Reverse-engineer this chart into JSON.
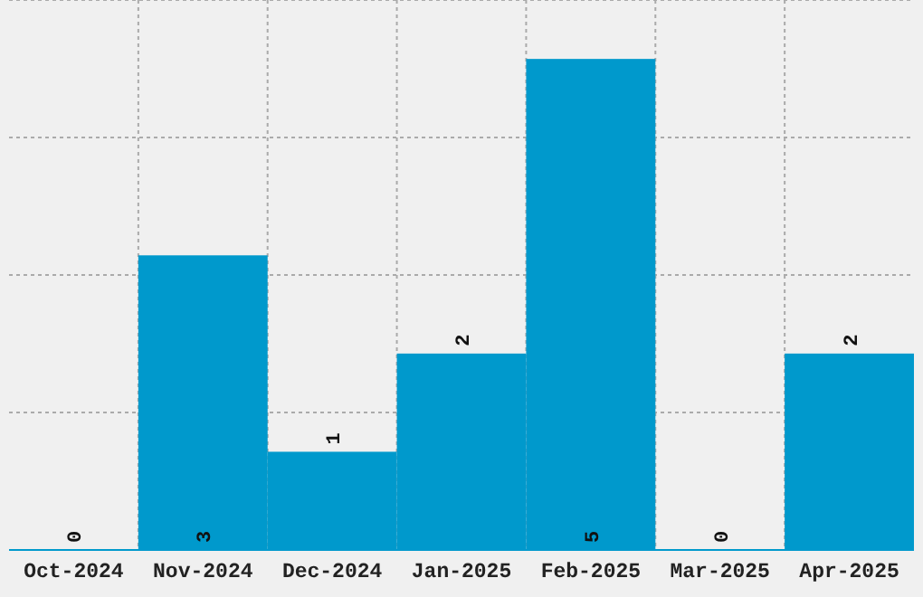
{
  "chart_data": {
    "type": "bar",
    "categories": [
      "Oct-2024",
      "Nov-2024",
      "Dec-2024",
      "Jan-2025",
      "Feb-2025",
      "Mar-2025",
      "Apr-2025"
    ],
    "values": [
      0,
      3,
      1,
      2,
      5,
      0,
      2
    ],
    "color": "#0099cc",
    "data_labels": true,
    "grid": true
  }
}
